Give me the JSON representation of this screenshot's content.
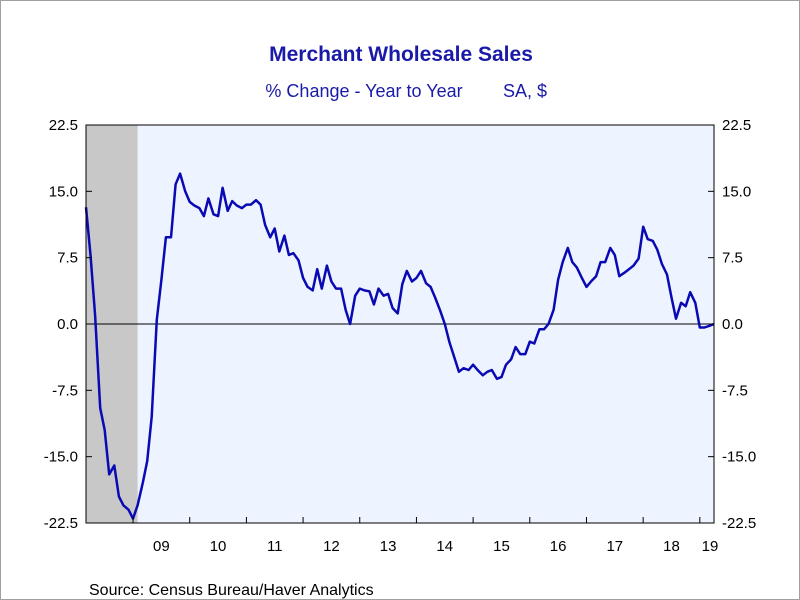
{
  "chart_data": {
    "type": "line",
    "title": "Merchant Wholesale Sales",
    "subtitle_left": "% Change - Year to Year",
    "subtitle_right": "SA, $",
    "source": "Source:  Census Bureau/Haver Analytics",
    "ylim": [
      -22.5,
      22.5
    ],
    "y_ticks": [
      "22.5",
      "15.0",
      "7.5",
      "0.0",
      "-7.5",
      "-15.0",
      "-22.5"
    ],
    "y_tick_values": [
      22.5,
      15.0,
      7.5,
      0.0,
      -7.5,
      -15.0,
      -22.5
    ],
    "x_range": [
      2008.17,
      2019.25
    ],
    "x_tick_labels": [
      "09",
      "10",
      "11",
      "12",
      "13",
      "14",
      "15",
      "16",
      "17",
      "18",
      "19"
    ],
    "x_tick_years": [
      2009,
      2010,
      2011,
      2012,
      2013,
      2014,
      2015,
      2016,
      2017,
      2018,
      2019
    ],
    "recession_shading": [
      2008.17,
      2009.08
    ],
    "zero_line": true,
    "grid": false,
    "colors": {
      "line": "#0a0ab4",
      "plot_background": "#eef4ff",
      "recession": "#c8c8c8",
      "text_accent": "#1a1aa8"
    },
    "series": [
      {
        "x": [
          2008.17,
          2008.25,
          2008.33,
          2008.42,
          2008.5,
          2008.58,
          2008.67,
          2008.75,
          2008.83,
          2008.92,
          2009.0,
          2009.08,
          2009.17,
          2009.25,
          2009.33,
          2009.42,
          2009.5,
          2009.58,
          2009.67,
          2009.75,
          2009.83,
          2009.92,
          2010.0,
          2010.08,
          2010.17,
          2010.25,
          2010.33,
          2010.42,
          2010.5,
          2010.58,
          2010.67,
          2010.75,
          2010.83,
          2010.92,
          2011.0,
          2011.08,
          2011.17,
          2011.25,
          2011.33,
          2011.42,
          2011.5,
          2011.58,
          2011.67,
          2011.75,
          2011.83,
          2011.92,
          2012.0,
          2012.08,
          2012.17,
          2012.25,
          2012.33,
          2012.42,
          2012.5,
          2012.58,
          2012.67,
          2012.75,
          2012.83,
          2012.92,
          2013.0,
          2013.08,
          2013.17,
          2013.25,
          2013.33,
          2013.42,
          2013.5,
          2013.58,
          2013.67,
          2013.75,
          2013.83,
          2013.92,
          2014.0,
          2014.08,
          2014.17,
          2014.25,
          2014.33,
          2014.42,
          2014.5,
          2014.58,
          2014.67,
          2014.75,
          2014.83,
          2014.92,
          2015.0,
          2015.08,
          2015.17,
          2015.25,
          2015.33,
          2015.42,
          2015.5,
          2015.58,
          2015.67,
          2015.75,
          2015.83,
          2015.92,
          2016.0,
          2016.08,
          2016.17,
          2016.25,
          2016.33,
          2016.42,
          2016.5,
          2016.58,
          2016.67,
          2016.75,
          2016.83,
          2016.92,
          2017.0,
          2017.08,
          2017.17,
          2017.25,
          2017.33,
          2017.42,
          2017.5,
          2017.58,
          2017.67,
          2017.75,
          2017.83,
          2017.92,
          2018.0,
          2018.08,
          2018.17,
          2018.25,
          2018.33,
          2018.42,
          2018.5,
          2018.58,
          2018.67,
          2018.75,
          2018.83,
          2018.92,
          2019.0,
          2019.08,
          2019.17,
          2019.25
        ],
        "values": [
          13.2,
          7.8,
          1.0,
          -9.5,
          -12.0,
          -17.0,
          -16.0,
          -19.5,
          -20.5,
          -21.0,
          -22.0,
          -20.5,
          -18.0,
          -15.5,
          -10.5,
          0.5,
          5.0,
          9.8,
          9.8,
          15.8,
          17.0,
          15.0,
          13.8,
          13.4,
          13.1,
          12.2,
          14.2,
          12.4,
          12.2,
          15.4,
          12.8,
          13.9,
          13.4,
          13.1,
          13.5,
          13.5,
          14.0,
          13.5,
          11.2,
          9.8,
          10.8,
          8.2,
          10.0,
          7.8,
          8.0,
          7.2,
          5.2,
          4.2,
          3.8,
          6.2,
          4.0,
          6.6,
          4.8,
          4.0,
          4.0,
          1.6,
          0.0,
          3.2,
          4.0,
          3.8,
          3.7,
          2.2,
          4.0,
          3.2,
          3.4,
          1.8,
          1.2,
          4.5,
          6.0,
          4.8,
          5.2,
          6.0,
          4.6,
          4.2,
          3.0,
          1.5,
          0.0,
          -2.0,
          -3.8,
          -5.4,
          -5.0,
          -5.2,
          -4.6,
          -5.2,
          -5.8,
          -5.4,
          -5.2,
          -6.2,
          -6.0,
          -4.6,
          -4.0,
          -2.6,
          -3.4,
          -3.4,
          -2.0,
          -2.2,
          -0.6,
          -0.6,
          0.0,
          1.6,
          5.0,
          7.0,
          8.6,
          7.0,
          6.4,
          5.2,
          4.2,
          4.8,
          5.4,
          7.0,
          7.0,
          8.6,
          7.8,
          5.4,
          5.8,
          6.2,
          6.6,
          7.4,
          11.0,
          9.6,
          9.4,
          8.4,
          6.8,
          5.6,
          3.0,
          0.6,
          2.4,
          2.0,
          3.6,
          2.4,
          -0.4,
          -0.4,
          -0.2,
          0.0
        ]
      }
    ]
  }
}
